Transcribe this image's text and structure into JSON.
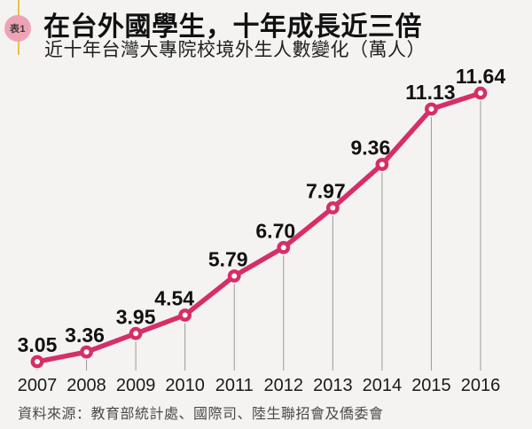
{
  "page": {
    "background": "#f4f3f1"
  },
  "header": {
    "badge": {
      "label": "表1",
      "circle_color": "#efa2b5",
      "accent_line_color": "#edbf4a"
    },
    "title": "在台外國學生，十年成長近三倍",
    "subtitle": "近十年台灣大專院校境外生人數變化（萬人）"
  },
  "chart_data": {
    "type": "line",
    "x": [
      2007,
      2008,
      2009,
      2010,
      2011,
      2012,
      2013,
      2014,
      2015,
      2016
    ],
    "values": [
      3.05,
      3.36,
      3.95,
      4.54,
      5.79,
      6.7,
      7.97,
      9.36,
      11.13,
      11.64
    ],
    "data_labels": [
      "3.05",
      "3.36",
      "3.95",
      "4.54",
      "5.79",
      "6.70",
      "7.97",
      "9.36",
      "11.13",
      "11.64"
    ],
    "title": "在台外國學生，十年成長近三倍",
    "subtitle": "近十年台灣大專院校境外生人數變化（萬人）",
    "unit": "萬人",
    "ylim": [
      3.05,
      11.64
    ],
    "grid": false,
    "legend": "none",
    "line_color": "#d62e68",
    "marker": "open-circle",
    "marker_fill": "#fdfdfd",
    "drop_line_color": "#999999"
  },
  "footer": {
    "source": "資料來源：教育部統計處、國際司、陸生聯招會及僑委會"
  }
}
